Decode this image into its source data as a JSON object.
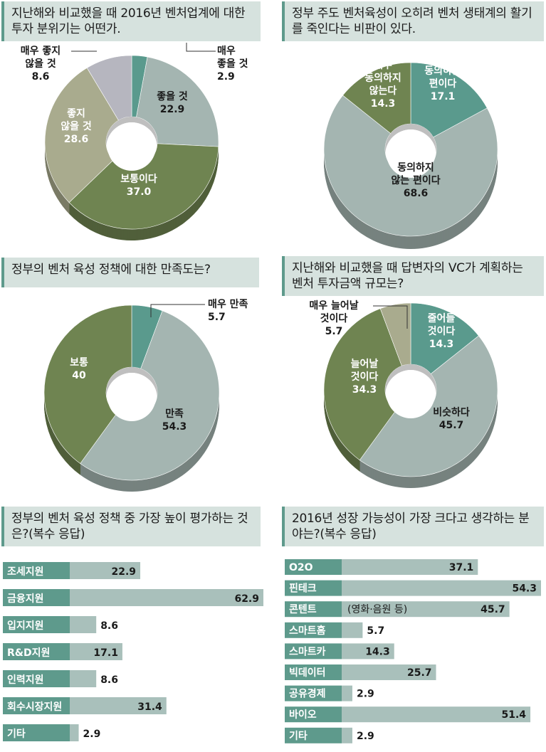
{
  "colors": {
    "teal": "#5a9a8d",
    "gray_blue": "#a4b5b1",
    "olive": "#6f8451",
    "khaki": "#a9ab8e",
    "light_purple": "#b6b6bf",
    "question_box": "#d6e2de",
    "bar": "#a9c0bb",
    "bar_label_box": "#5e9a8c"
  },
  "chart_data": [
    {
      "id": "q1",
      "type": "pie",
      "title": "지난해와 비교했을 때 2016년 벤처업계에 대한 투자 분위기는 어떤가.",
      "slices": [
        {
          "label_lines": [
            "매우",
            "좋을 것"
          ],
          "value": 2.9,
          "color": "teal"
        },
        {
          "label_lines": [
            "좋을 것"
          ],
          "value": 22.9,
          "color": "gray_blue"
        },
        {
          "label_lines": [
            "보통이다"
          ],
          "value": 37.0,
          "value_text": "37.0",
          "color": "olive"
        },
        {
          "label_lines": [
            "좋지",
            "않을 것"
          ],
          "value": 28.6,
          "color": "khaki"
        },
        {
          "label_lines": [
            "매우 좋지",
            "않을 것"
          ],
          "value": 8.6,
          "color": "light_purple"
        }
      ]
    },
    {
      "id": "q2",
      "type": "pie",
      "title": "정부 주도 벤처육성이 오히려 벤처 생태계의 활기를 죽인다는 비판이 있다.",
      "slices": [
        {
          "label_lines": [
            "동의하는",
            "편이다"
          ],
          "value": 17.1,
          "color": "teal"
        },
        {
          "label_lines": [
            "동의하지",
            "않는 편이다"
          ],
          "value": 68.6,
          "color": "gray_blue"
        },
        {
          "label_lines": [
            "매우",
            "동의하지",
            "않는다"
          ],
          "value": 14.3,
          "color": "olive"
        }
      ]
    },
    {
      "id": "q3",
      "type": "pie",
      "title": "정부의 벤처 육성 정책에 대한 만족도는?",
      "slices": [
        {
          "label_lines": [
            "매우 만족"
          ],
          "value": 5.7,
          "color": "teal"
        },
        {
          "label_lines": [
            "만족"
          ],
          "value": 54.3,
          "color": "gray_blue"
        },
        {
          "label_lines": [
            "보통"
          ],
          "value": 40,
          "color": "olive"
        }
      ]
    },
    {
      "id": "q4",
      "type": "pie",
      "title": "지난해와 비교했을 때 답변자의 VC가 계획하는 벤처 투자금액 규모는?",
      "slices": [
        {
          "label_lines": [
            "줄어들",
            "것이다"
          ],
          "value": 14.3,
          "color": "teal"
        },
        {
          "label_lines": [
            "비슷하다"
          ],
          "value": 45.7,
          "color": "gray_blue"
        },
        {
          "label_lines": [
            "늘어날",
            "것이다"
          ],
          "value": 34.3,
          "color": "olive"
        },
        {
          "label_lines": [
            "매우 늘어날",
            "것이다"
          ],
          "value": 5.7,
          "color": "khaki"
        }
      ]
    },
    {
      "id": "q5",
      "type": "bar",
      "title": "정부의 벤처 육성 정책 중 가장 높이 평가하는 것은?(복수 응답)",
      "categories": [
        "조세지원",
        "금융지원",
        "입지지원",
        "R&D지원",
        "인력지원",
        "회수시장지원",
        "기타"
      ],
      "values": [
        22.9,
        62.9,
        8.6,
        17.1,
        8.6,
        31.4,
        2.9
      ]
    },
    {
      "id": "q6",
      "type": "bar",
      "title": "2016년 성장 가능성이 가장 크다고 생각하는 분야는?(복수 응답)",
      "categories": [
        "O2O",
        "핀테크",
        "콘텐트",
        "스마트홈",
        "스마트카",
        "빅데이터",
        "공유경제",
        "바이오",
        "기타"
      ],
      "values": [
        37.1,
        54.3,
        45.7,
        5.7,
        14.3,
        25.7,
        2.9,
        51.4,
        2.9
      ],
      "notes": [
        "",
        "",
        "(영화·음원 등)",
        "",
        "",
        "",
        "",
        "",
        ""
      ]
    }
  ]
}
